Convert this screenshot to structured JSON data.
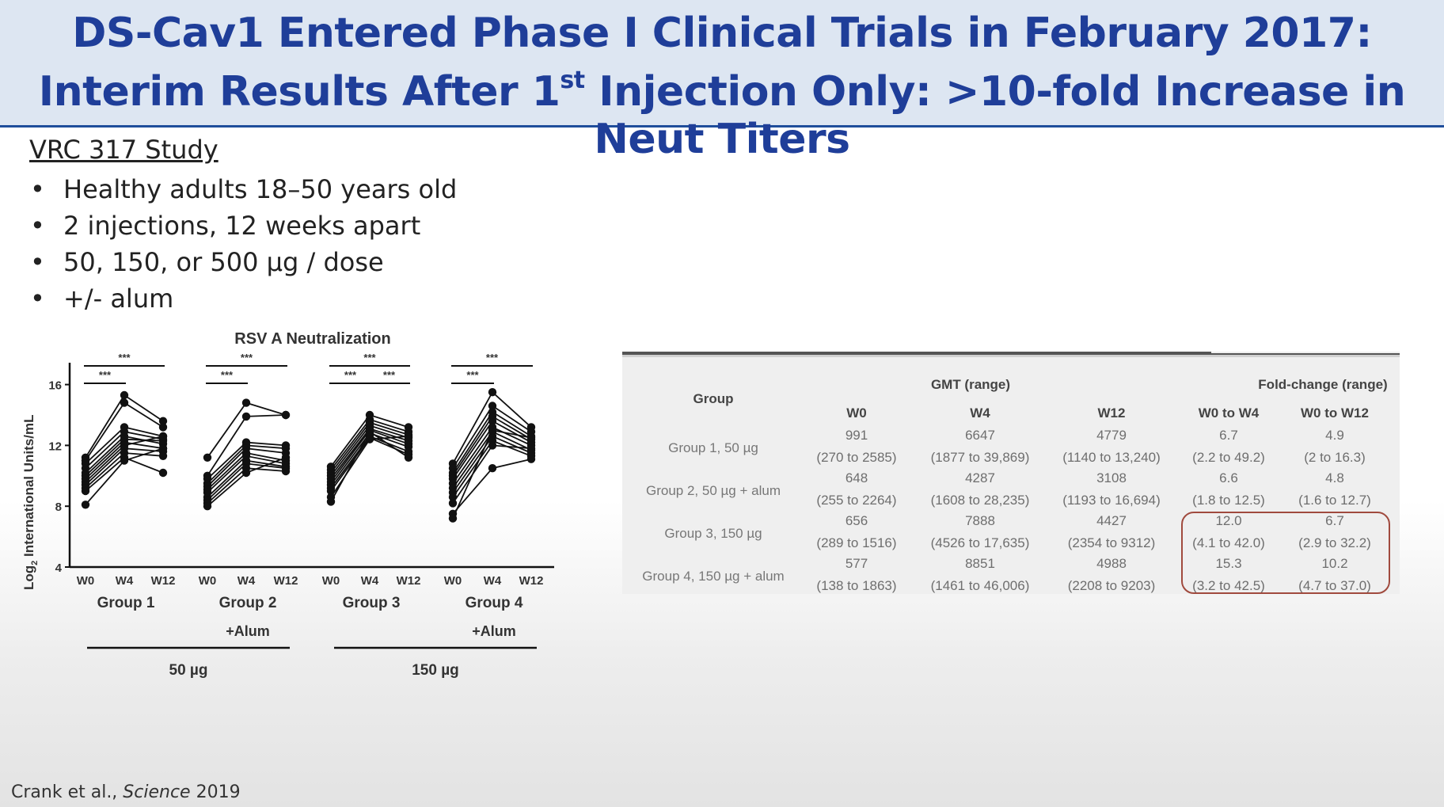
{
  "title": {
    "line1": "DS-Cav1 Entered Phase I Clinical Trials in February 2017:",
    "line2_pre": "Interim Results After 1",
    "line2_sup": "st",
    "line2_post": " Injection Only: >10-fold Increase in Neut Titers"
  },
  "study": {
    "heading": "VRC 317 Study",
    "bullet_symbol": "•",
    "bullets": [
      "Healthy adults 18–50 years old",
      "2 injections, 12 weeks apart",
      "50, 150, or 500 µg / dose",
      "+/- alum"
    ]
  },
  "citation": {
    "authors": "Crank et al., ",
    "journal": "Science",
    "year": " 2019"
  },
  "chart_data": {
    "type": "line",
    "title": "RSV A Neutralization",
    "ylabel_pre": "Log",
    "ylabel_sub": "2",
    "ylabel_post": " International Units/mL",
    "yticks": [
      "4",
      "8",
      "12",
      "16"
    ],
    "ylim": [
      4,
      17
    ],
    "timepoints": [
      "W0",
      "W4",
      "W12"
    ],
    "significance": "***",
    "groups": [
      {
        "name": "Group 1",
        "sub": "",
        "subjects": [
          [
            11.2,
            15.3,
            13.6
          ],
          [
            11.0,
            14.8,
            13.2
          ],
          [
            10.8,
            13.2,
            12.6
          ],
          [
            10.5,
            12.9,
            12.4
          ],
          [
            10.2,
            12.6,
            12.1
          ],
          [
            10.0,
            12.4,
            12.3
          ],
          [
            9.8,
            12.2,
            11.8
          ],
          [
            9.6,
            12.0,
            12.6
          ],
          [
            9.4,
            11.8,
            11.6
          ],
          [
            9.2,
            11.5,
            11.3
          ],
          [
            9.0,
            11.2,
            10.2
          ],
          [
            8.1,
            11.0,
            11.8
          ]
        ]
      },
      {
        "name": "Group 2",
        "sub": "+Alum",
        "subjects": [
          [
            11.2,
            14.8,
            14.0
          ],
          [
            10.0,
            13.9,
            14.0
          ],
          [
            9.8,
            12.2,
            12.0
          ],
          [
            9.5,
            12.0,
            11.8
          ],
          [
            9.3,
            11.8,
            11.5
          ],
          [
            9.1,
            11.5,
            11.0
          ],
          [
            8.9,
            11.3,
            10.8
          ],
          [
            8.6,
            11.0,
            10.6
          ],
          [
            8.4,
            10.8,
            10.5
          ],
          [
            8.2,
            10.5,
            10.3
          ],
          [
            8.0,
            10.2,
            11.2
          ]
        ]
      },
      {
        "name": "Group 3",
        "sub": "",
        "subjects": [
          [
            10.6,
            14.0,
            13.2
          ],
          [
            10.4,
            13.7,
            12.9
          ],
          [
            10.2,
            13.5,
            12.7
          ],
          [
            10.0,
            13.3,
            12.5
          ],
          [
            9.8,
            13.1,
            12.3
          ],
          [
            9.6,
            13.0,
            12.1
          ],
          [
            9.4,
            12.8,
            11.9
          ],
          [
            9.2,
            12.6,
            11.6
          ],
          [
            9.0,
            12.5,
            11.4
          ],
          [
            8.6,
            12.4,
            12.6
          ],
          [
            8.3,
            12.9,
            11.2
          ]
        ]
      },
      {
        "name": "Group 4",
        "sub": "+Alum",
        "subjects": [
          [
            10.8,
            15.5,
            13.2
          ],
          [
            10.5,
            14.6,
            12.9
          ],
          [
            10.2,
            14.2,
            12.6
          ],
          [
            10.0,
            13.9,
            12.4
          ],
          [
            9.8,
            13.6,
            12.2
          ],
          [
            9.5,
            13.2,
            12.0
          ],
          [
            9.2,
            12.9,
            11.7
          ],
          [
            8.9,
            12.6,
            11.5
          ],
          [
            8.6,
            12.3,
            11.3
          ],
          [
            8.2,
            12.0,
            11.8
          ],
          [
            7.5,
            10.5,
            11.1
          ],
          [
            7.2,
            13.0,
            12.5
          ]
        ]
      }
    ],
    "dose_groups": [
      {
        "label": "50 µg"
      },
      {
        "label": "150 µg"
      }
    ]
  },
  "table": {
    "group_header": "Group",
    "gmt_header": "GMT (range)",
    "fold_header": "Fold-change (range)",
    "columns": [
      "W0",
      "W4",
      "W12",
      "W0 to W4",
      "W0 to W12"
    ],
    "rows": [
      {
        "group": "Group 1, 50 µg",
        "cells": [
          {
            "value": "991",
            "range": "(270 to 2585)"
          },
          {
            "value": "6647",
            "range": "(1877 to 39,869)"
          },
          {
            "value": "4779",
            "range": "(1140 to 13,240)"
          },
          {
            "value": "6.7",
            "range": "(2.2 to 49.2)"
          },
          {
            "value": "4.9",
            "range": "(2 to 16.3)"
          }
        ]
      },
      {
        "group": "Group 2, 50 µg + alum",
        "cells": [
          {
            "value": "648",
            "range": "(255 to 2264)"
          },
          {
            "value": "4287",
            "range": "(1608 to 28,235)"
          },
          {
            "value": "3108",
            "range": "(1193 to 16,694)"
          },
          {
            "value": "6.6",
            "range": "(1.8 to 12.5)"
          },
          {
            "value": "4.8",
            "range": "(1.6 to 12.7)"
          }
        ]
      },
      {
        "group": "Group 3, 150 µg",
        "cells": [
          {
            "value": "656",
            "range": "(289 to 1516)"
          },
          {
            "value": "7888",
            "range": "(4526 to 17,635)"
          },
          {
            "value": "4427",
            "range": "(2354 to 9312)"
          },
          {
            "value": "12.0",
            "range": "(4.1 to 42.0)"
          },
          {
            "value": "6.7",
            "range": "(2.9 to 32.2)"
          }
        ]
      },
      {
        "group": "Group 4, 150 µg + alum",
        "cells": [
          {
            "value": "577",
            "range": "(138 to 1863)"
          },
          {
            "value": "8851",
            "range": "(1461 to 46,006)"
          },
          {
            "value": "4988",
            "range": "(2208 to 9203)"
          },
          {
            "value": "15.3",
            "range": "(3.2 to 42.5)"
          },
          {
            "value": "10.2",
            "range": "(4.7 to 37.0)"
          }
        ]
      }
    ],
    "highlight_color": "#a04a3e"
  }
}
